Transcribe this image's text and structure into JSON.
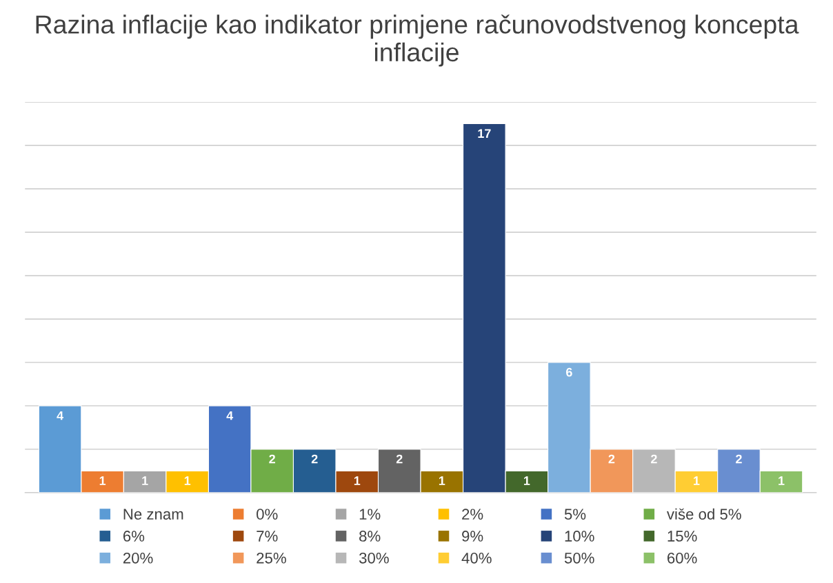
{
  "chart_data": {
    "type": "bar",
    "title": "Razina inflacije kao indikator primjene računovodstvenog koncepta inflacije",
    "categories": [
      null
    ],
    "series": [
      {
        "name": "Ne znam",
        "color": "#5b9bd5",
        "values": [
          4
        ]
      },
      {
        "name": "0%",
        "color": "#ed7d31",
        "values": [
          1
        ]
      },
      {
        "name": "1%",
        "color": "#a5a5a5",
        "values": [
          1
        ]
      },
      {
        "name": "2%",
        "color": "#ffc000",
        "values": [
          1
        ]
      },
      {
        "name": "5%",
        "color": "#4472c4",
        "values": [
          4
        ]
      },
      {
        "name": "više od 5%",
        "color": "#70ad47",
        "values": [
          2
        ]
      },
      {
        "name": "6%",
        "color": "#255e91",
        "values": [
          2
        ]
      },
      {
        "name": "7%",
        "color": "#9e480e",
        "values": [
          1
        ]
      },
      {
        "name": "8%",
        "color": "#636363",
        "values": [
          2
        ]
      },
      {
        "name": "9%",
        "color": "#997300",
        "values": [
          1
        ]
      },
      {
        "name": "10%",
        "color": "#264478",
        "values": [
          17
        ]
      },
      {
        "name": "15%",
        "color": "#43682b",
        "values": [
          1
        ]
      },
      {
        "name": "20%",
        "color": "#7cafdd",
        "values": [
          6
        ]
      },
      {
        "name": "25%",
        "color": "#f1975a",
        "values": [
          2
        ]
      },
      {
        "name": "30%",
        "color": "#b7b7b7",
        "values": [
          2
        ]
      },
      {
        "name": "40%",
        "color": "#ffcd33",
        "values": [
          1
        ]
      },
      {
        "name": "50%",
        "color": "#698ed0",
        "values": [
          2
        ]
      },
      {
        "name": "60%",
        "color": "#8cc168",
        "values": [
          1
        ]
      }
    ],
    "ylim": [
      0,
      18
    ],
    "yticks": [
      {
        "value": 0,
        "label": null
      },
      {
        "value": 2,
        "label": null
      },
      {
        "value": 4,
        "label": null
      },
      {
        "value": 6,
        "label": null
      },
      {
        "value": 8,
        "label": null
      },
      {
        "value": 10,
        "label": null
      },
      {
        "value": 12,
        "label": null
      },
      {
        "value": 14,
        "label": null
      },
      {
        "value": 16,
        "label": null
      },
      {
        "value": 18,
        "label": null
      }
    ],
    "grid": "y",
    "legend": "bottom",
    "data_labels": true
  }
}
